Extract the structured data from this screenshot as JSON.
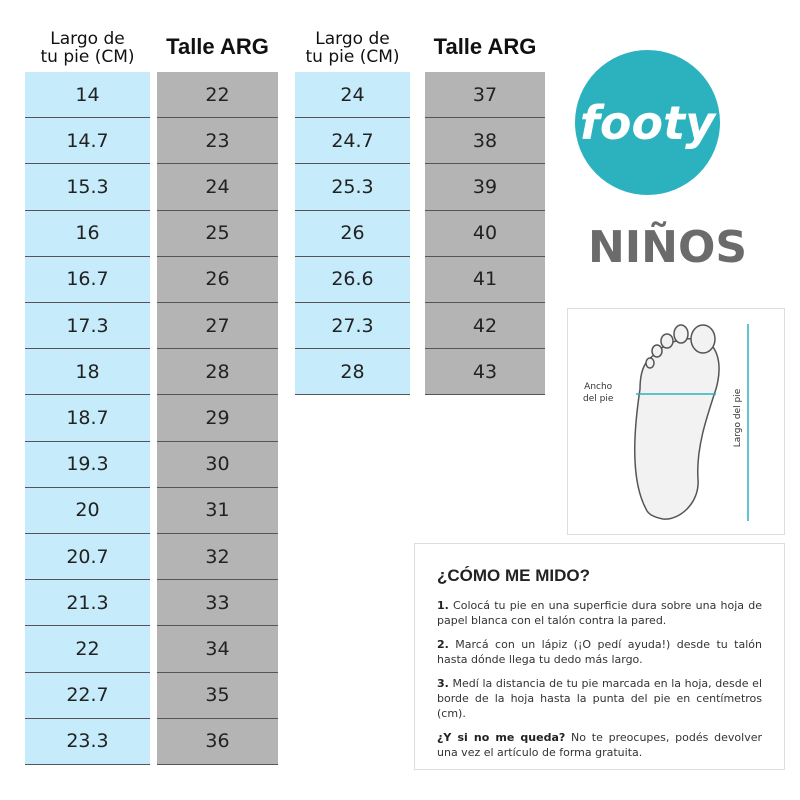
{
  "left_table": {
    "headers": [
      [
        "Largo de",
        "tu pie (CM)"
      ],
      [
        "Talle ARG"
      ]
    ],
    "rows": [
      [
        "14",
        "22"
      ],
      [
        "14.7",
        "23"
      ],
      [
        "15.3",
        "24"
      ],
      [
        "16",
        "25"
      ],
      [
        "16.7",
        "26"
      ],
      [
        "17.3",
        "27"
      ],
      [
        "18",
        "28"
      ],
      [
        "18.7",
        "29"
      ],
      [
        "19.3",
        "30"
      ],
      [
        "20",
        "31"
      ],
      [
        "20.7",
        "32"
      ],
      [
        "21.3",
        "33"
      ],
      [
        "22",
        "34"
      ],
      [
        "22.7",
        "35"
      ],
      [
        "23.3",
        "36"
      ]
    ]
  },
  "right_table": {
    "headers": [
      [
        "Largo de",
        "tu pie (CM)"
      ],
      [
        "Talle ARG"
      ]
    ],
    "rows": [
      [
        "24",
        "37"
      ],
      [
        "24.7",
        "38"
      ],
      [
        "25.3",
        "39"
      ],
      [
        "26",
        "40"
      ],
      [
        "26.6",
        "41"
      ],
      [
        "27.3",
        "42"
      ],
      [
        "28",
        "43"
      ]
    ]
  },
  "logo": {
    "text": "footy"
  },
  "category": "NIÑOS",
  "diagram": {
    "width_label": [
      "Ancho",
      "del pie"
    ],
    "length_label": "Largo del pie"
  },
  "instructions": {
    "title": "¿CÓMO ME MIDO?",
    "steps": [
      {
        "lead": "1.",
        "text": "Colocá tu pie en una superficie dura sobre una hoja de papel blanca con el talón contra la pared."
      },
      {
        "lead": "2.",
        "text": "Marcá con un lápiz (¡O pedí ayuda!) desde tu talón hasta dónde llega tu dedo más largo."
      },
      {
        "lead": "3.",
        "text": "Medí la distancia de tu pie marcada en la hoja, desde el borde de la hoja hasta la punta del pie en centímetros (cm)."
      },
      {
        "lead": "¿Y si no me queda?",
        "text": "No te preocupes, podés devolver una vez el artículo de forma gratuita."
      }
    ]
  }
}
